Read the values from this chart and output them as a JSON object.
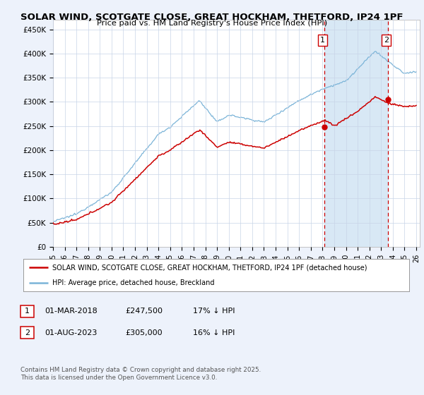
{
  "title_line1": "SOLAR WIND, SCOTGATE CLOSE, GREAT HOCKHAM, THETFORD, IP24 1PF",
  "title_line2": "Price paid vs. HM Land Registry's House Price Index (HPI)",
  "ylim": [
    0,
    470000
  ],
  "yticks": [
    0,
    50000,
    100000,
    150000,
    200000,
    250000,
    300000,
    350000,
    400000,
    450000
  ],
  "ytick_labels": [
    "£0",
    "£50K",
    "£100K",
    "£150K",
    "£200K",
    "£250K",
    "£300K",
    "£350K",
    "£400K",
    "£450K"
  ],
  "xlim_start": 1995.0,
  "xlim_end": 2026.3,
  "hpi_color": "#7bb4d8",
  "price_color": "#cc0000",
  "shade_color": "#d8e8f5",
  "marker1_x": 2018.17,
  "marker1_y": 247500,
  "marker2_x": 2023.58,
  "marker2_y": 305000,
  "legend_line1": "SOLAR WIND, SCOTGATE CLOSE, GREAT HOCKHAM, THETFORD, IP24 1PF (detached house)",
  "legend_line2": "HPI: Average price, detached house, Breckland",
  "table_row1": [
    "1",
    "01-MAR-2018",
    "£247,500",
    "17% ↓ HPI"
  ],
  "table_row2": [
    "2",
    "01-AUG-2023",
    "£305,000",
    "16% ↓ HPI"
  ],
  "footer": "Contains HM Land Registry data © Crown copyright and database right 2025.\nThis data is licensed under the Open Government Licence v3.0.",
  "bg_color": "#edf2fb",
  "plot_bg_color": "#ffffff"
}
